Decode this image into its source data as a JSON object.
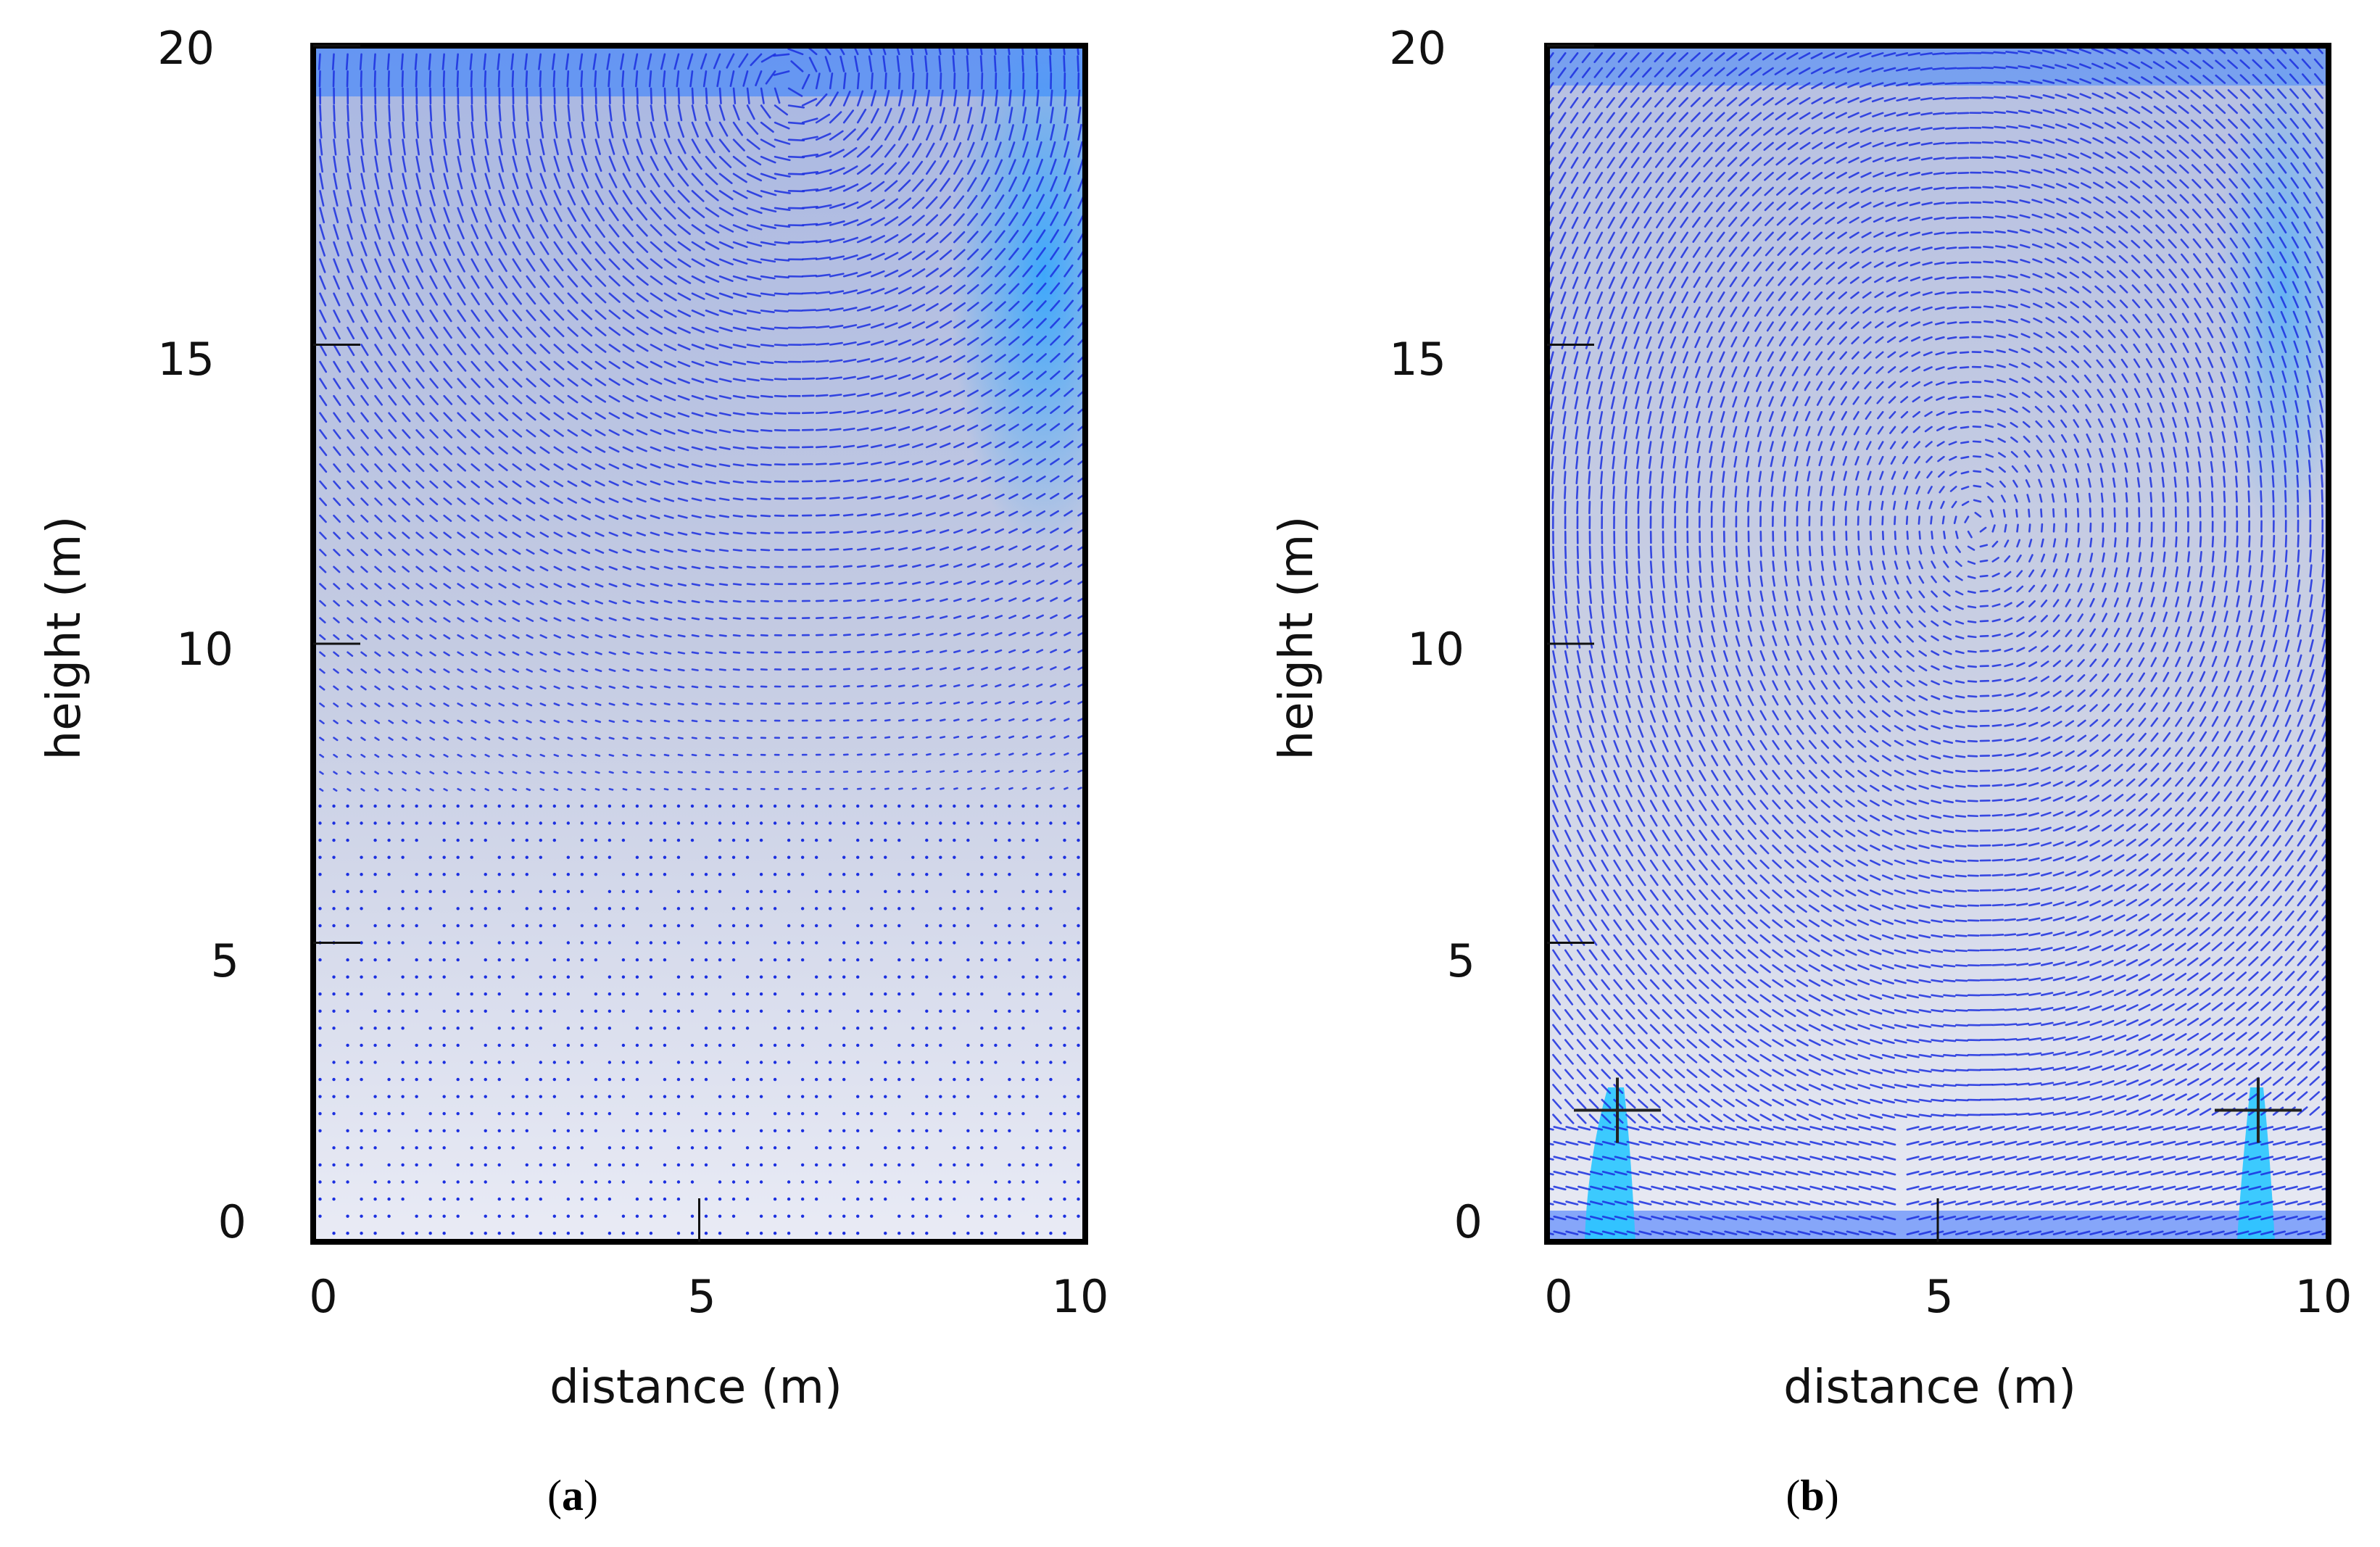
{
  "chart_data": [
    {
      "type": "vector-field",
      "panel_label": "a",
      "xlabel": "distance (m)",
      "ylabel": "height (m)",
      "xlim": [
        0,
        10
      ],
      "ylim": [
        0,
        20
      ],
      "xticks": [
        0,
        5,
        10
      ],
      "yticks": [
        0,
        5,
        10,
        15,
        20
      ],
      "colors": {
        "background_top": "#b9c3dd",
        "background_bottom": "#e6e9f4",
        "vector": "#1b2fe0",
        "jet": "#25b5ff"
      },
      "sources": []
    },
    {
      "type": "vector-field",
      "panel_label": "b",
      "xlabel": "distance (m)",
      "ylabel": "height (m)",
      "xlim": [
        0,
        10
      ],
      "ylim": [
        0,
        20
      ],
      "xticks": [
        0,
        5,
        10
      ],
      "yticks": [
        0,
        5,
        10,
        15,
        20
      ],
      "colors": {
        "background_top": "#c3cadf",
        "background_bottom": "#e7e9f2",
        "vector": "#1b2fe0",
        "jet": "#29c7ff"
      },
      "sources": [
        {
          "x": 0.9,
          "y": 2.2
        },
        {
          "x": 9.1,
          "y": 2.2
        }
      ]
    }
  ]
}
